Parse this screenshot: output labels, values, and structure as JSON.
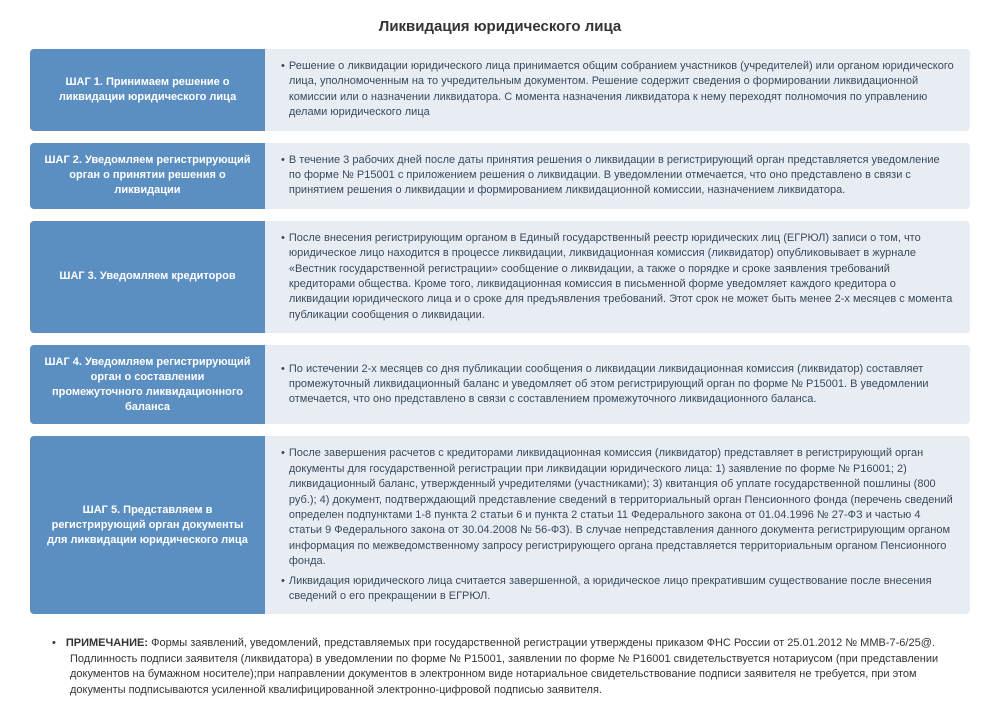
{
  "title": "Ликвидация юридического лица",
  "colors": {
    "label_bg": "#5b8ec1",
    "body_bg": "#e8edf3",
    "body_text": "#3a4a5c",
    "label_text": "#ffffff"
  },
  "steps": [
    {
      "label": "ШАГ 1. Принимаем решение о ликвидации юридического лица",
      "items": [
        "Решение о ликвидации юридического лица принимается общим собранием участников (учредителей) или органом юридического лица, уполномоченным на то учредительным документом. Решение содержит сведения о формировании ликвидационной комиссии или о назначении ликвидатора. С момента назначения  ликвидатора  к нему переходят полномочия по управлению делами юридического лица"
      ]
    },
    {
      "label": "ШАГ 2.   Уведомляем регистрирующий орган  о принятии решения о ликвидации",
      "items": [
        "В течение 3 рабочих  дней после даты принятия решения о ликвидации в регистрирующий орган представляется уведомление по форме №  Р15001 с приложением решения о ликвидации.  В уведомлении отмечается, что оно представлено в связи с принятием решения о ликвидации и формированием ликвидационной комиссии, назначением  ликвидатора."
      ]
    },
    {
      "label": "ШАГ 3.  Уведомляем кредиторов",
      "items": [
        "После внесения регистрирующим органом  в Единый государственный реестр юридических лиц (ЕГРЮЛ) записи о  том, что юридическое лицо находится в процессе ликвидации, ликвидационная комиссия (ликвидатор) опубликовывает в журнале «Вестник государственной регистрации» сообщение о ликвидации, а также о порядке и сроке заявления требований кредиторами общества.  Кроме того, ликвидационная комиссия в письменной форме уведомляет каждого кредитора о ликвидации юридического лица и о сроке для предъявления требований. Этот срок не может быть менее 2-х месяцев с момента публикации сообщения о ликвидации."
      ]
    },
    {
      "label": "ШАГ 4. Уведомляем регистрирующий орган  о составлении промежуточного ликвидационного баланса",
      "items": [
        "По истечении 2-х месяцев со дня публикации сообщения о ликвидации ликвидационная комиссия (ликвидатор) составляет промежуточный ликвидационный баланс и уведомляет об этом регистрирующий орган по форме № Р15001. В уведомлении отмечается, что оно представлено в связи с составлением промежуточного ликвидационного баланса."
      ]
    },
    {
      "label": "ШАГ 5. Представляем в регистрирующий орган документы для ликвидации юридического лица",
      "items": [
        "После завершения расчетов с кредиторами ликвидационная комиссия (ликвидатор) представляет в регистрирующий орган документы для государственной регистрации при ликвидации юридического лица: 1) заявление по форме № Р16001;  2) ликвидационный баланс, утвержденный учредителями (участниками);  3) квитанция об уплате государственной пошлины (800 руб.);  4) документ, подтверждающий представление сведений в территориальный орган Пенсионного фонда (перечень сведений определен подпунктами 1-8 пункта 2 статьи 6 и пункта 2 статьи 11 Федерального закона от 01.04.1996 № 27-ФЗ и частью 4 статьи 9 Федерального закона от 30.04.2008 № 56-ФЗ). В случае непредставления данного документа регистрирующим органом  информация по межведомственному запросу регистрирующего органа представляется территориальным органом Пенсионного фонда.",
        "Ликвидация юридического лица считается завершенной, а юридическое лицо прекратившим существование после внесения сведений о его прекращении в ЕГРЮЛ."
      ]
    }
  ],
  "note": {
    "label": "ПРИМЕЧАНИЕ:",
    "text": "Формы заявлений, уведомлений, представляемых при государственной регистрации утверждены приказом ФНС России от 25.01.2012 № ММВ-7-6/25@. Подлинность подписи заявителя (ликвидатора) в  уведомлении по форме № Р15001, заявлении по форме № Р16001  свидетельствуется нотариусом (при представлении документов  на бумажном носителе);при направлении  документов в электронном виде нотариальное свидетельствование подписи заявителя не требуется, при этом документы подписываются усиленной квалифицированной электронно-цифровой подписью заявителя."
  }
}
